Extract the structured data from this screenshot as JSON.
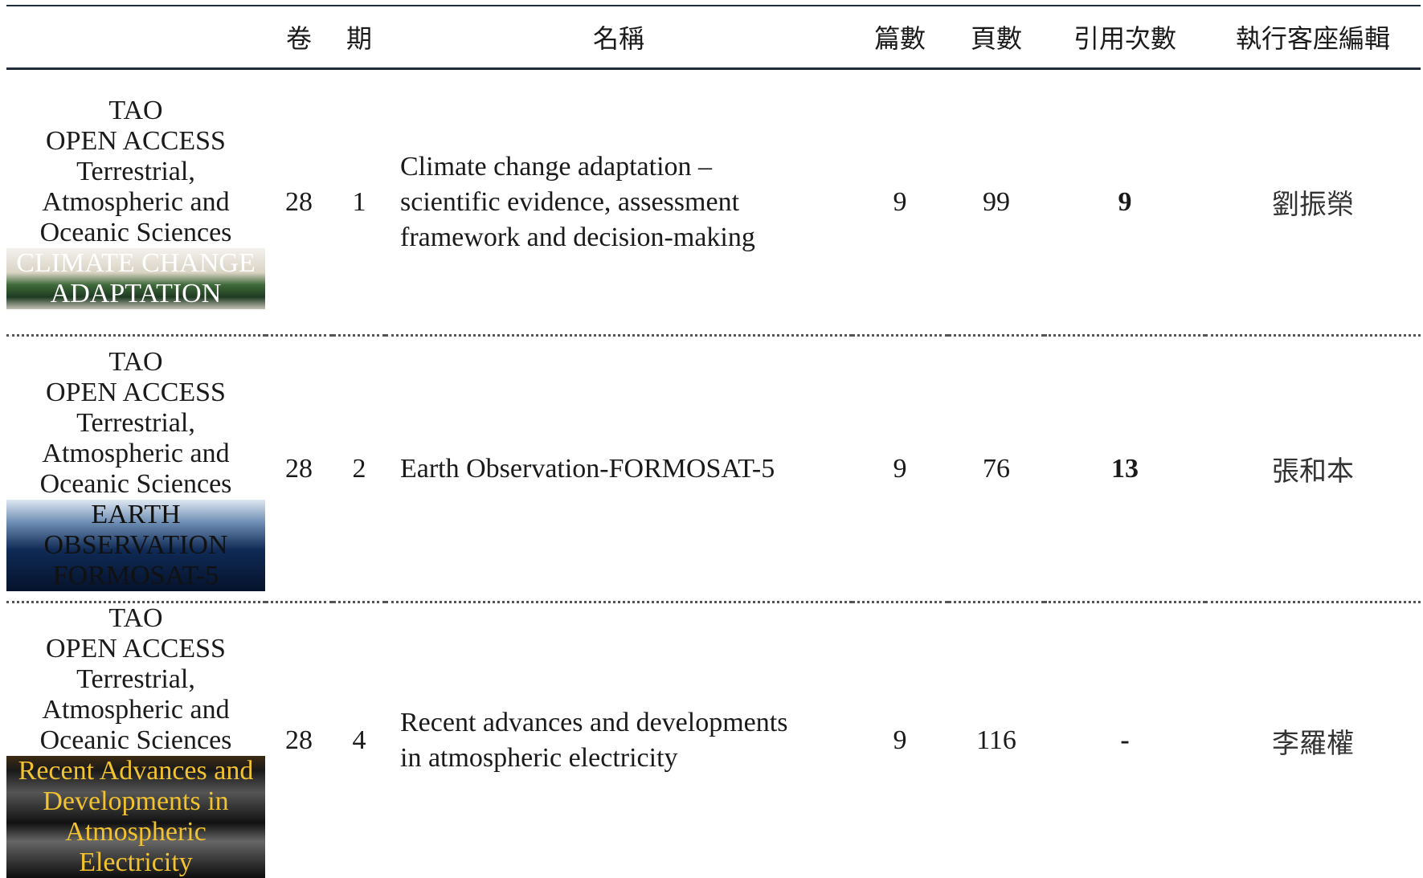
{
  "header": {
    "columns": [
      "卷",
      "期",
      "名稱",
      "篇數",
      "頁數",
      "引用次數",
      "執行客座編輯"
    ]
  },
  "cover": {
    "logo": "TAO",
    "badge": "OPEN ACCESS",
    "subtitle": "Terrestrial, Atmospheric and Oceanic Sciences"
  },
  "rows": [
    {
      "cover_caption": "CLIMATE CHANGE ADAPTATION",
      "volume": "28",
      "issue": "1",
      "title": [
        "Climate change adaptation –",
        "scientific evidence, assessment",
        "framework and decision-making"
      ],
      "articles": "9",
      "pages": "99",
      "citations": "9",
      "editor": "劉振榮"
    },
    {
      "cover_caption": "EARTH OBSERVATION FORMOSAT-5",
      "volume": "28",
      "issue": "2",
      "title": [
        "Earth Observation-FORMOSAT-5"
      ],
      "articles": "9",
      "pages": "76",
      "citations": "13",
      "editor": "張和本"
    },
    {
      "cover_caption": "Recent Advances and Developments in Atmospheric Electricity",
      "volume": "28",
      "issue": "4",
      "title": [
        "Recent advances and developments",
        "in atmospheric electricity"
      ],
      "articles": "9",
      "pages": "116",
      "citations": "-",
      "editor": "李羅權"
    }
  ]
}
